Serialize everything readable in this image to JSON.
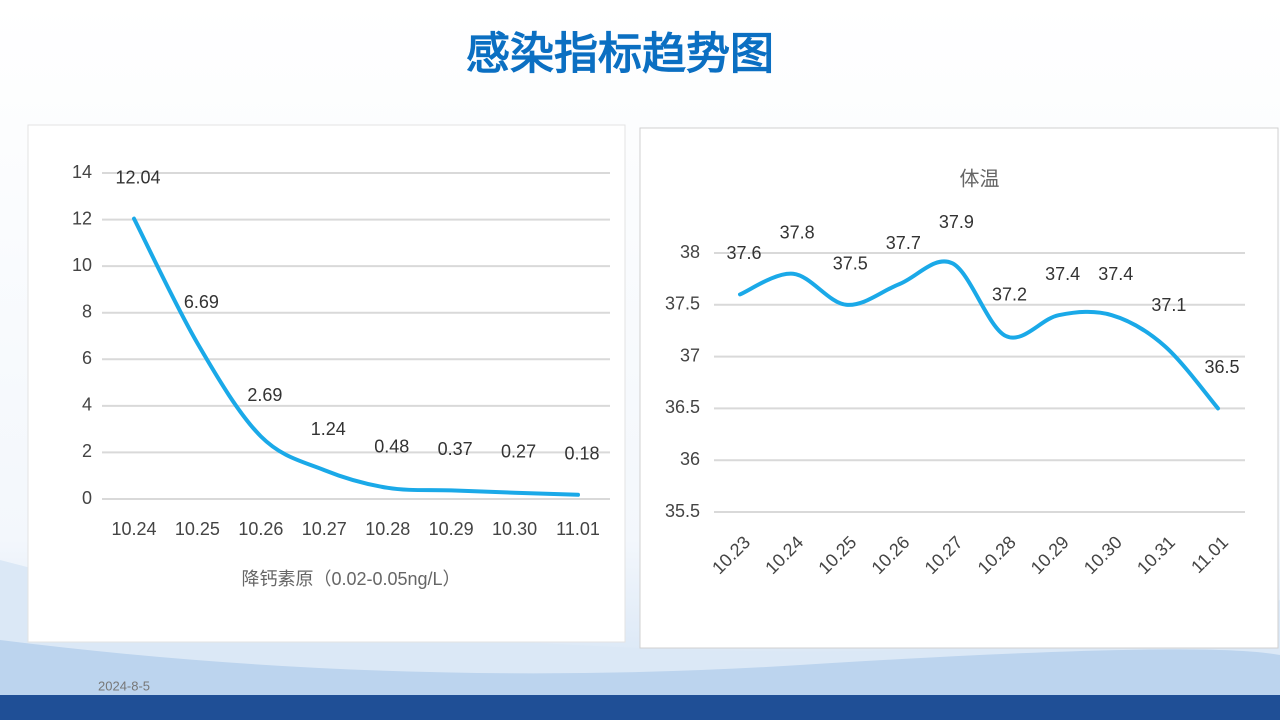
{
  "title": "感染指标趋势图",
  "date": "2024-8-5",
  "chart_data": [
    {
      "type": "line",
      "x_label": "降钙素原（0.02-0.05ng/L）",
      "categories": [
        "10.24",
        "10.25",
        "10.26",
        "10.27",
        "10.28",
        "10.29",
        "10.30",
        "11.01"
      ],
      "series": [
        {
          "color": "#1aa9e8",
          "values": [
            12.04,
            6.69,
            2.69,
            1.24,
            0.48,
            0.37,
            0.27,
            0.18
          ]
        }
      ],
      "ylim": [
        0,
        14
      ],
      "yticks": [
        0,
        2,
        4,
        6,
        8,
        10,
        12,
        14
      ],
      "grid": true
    },
    {
      "type": "line",
      "title": "体温",
      "categories": [
        "10.23",
        "10.24",
        "10.25",
        "10.26",
        "10.27",
        "10.28",
        "10.29",
        "10.30",
        "10.31",
        "11.01"
      ],
      "series": [
        {
          "color": "#1aa9e8",
          "values": [
            37.6,
            37.8,
            37.5,
            37.7,
            37.9,
            37.2,
            37.4,
            37.4,
            37.1,
            36.5
          ]
        }
      ],
      "ylim": [
        35.5,
        38
      ],
      "yticks": [
        35.5,
        36,
        36.5,
        37,
        37.5,
        38
      ],
      "grid": true
    }
  ]
}
